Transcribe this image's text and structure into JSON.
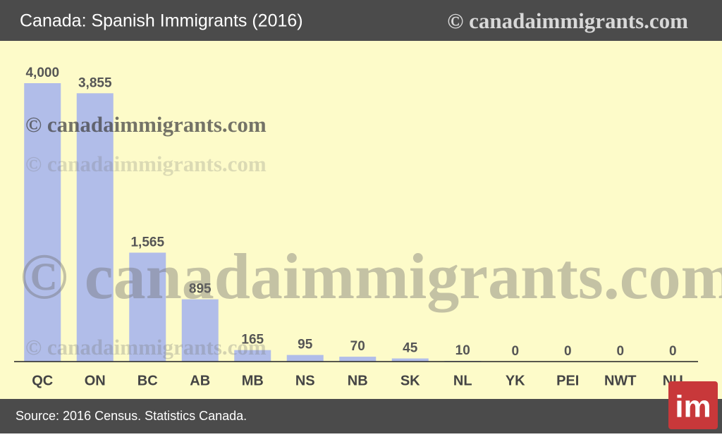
{
  "chart_data": {
    "type": "bar",
    "title": "Canada: Spanish Immigrants (2016)",
    "header_watermark": "© canadaimmigrants.com",
    "watermarks": [
      "© canadaimmigrants.com",
      "© canadaimmigrants.com",
      "© canadaimmigrants.com",
      "© canadaimmigrants.com"
    ],
    "categories": [
      "QC",
      "ON",
      "BC",
      "AB",
      "MB",
      "NS",
      "NB",
      "SK",
      "NL",
      "YK",
      "PEI",
      "NWT",
      "NU"
    ],
    "values": [
      4000,
      3855,
      1565,
      895,
      165,
      95,
      70,
      45,
      10,
      0,
      0,
      0,
      0
    ],
    "value_labels": [
      "4,000",
      "3,855",
      "1,565",
      "895",
      "165",
      "95",
      "70",
      "45",
      "10",
      "0",
      "0",
      "0",
      "0"
    ],
    "color": "#b1bde9",
    "ylim": [
      0,
      4000
    ],
    "source": "Source: 2016 Census. Statistics Canada.",
    "logo": "im"
  }
}
